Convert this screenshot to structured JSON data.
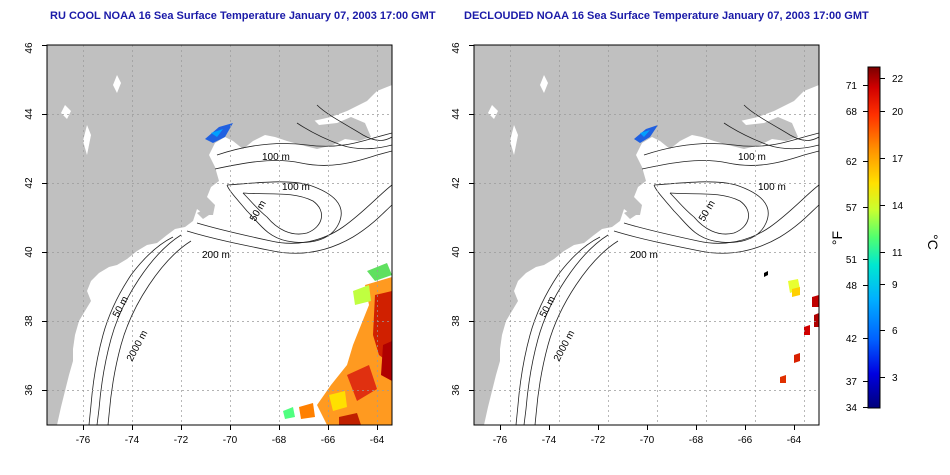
{
  "panels": [
    {
      "id": "left",
      "title": "RU COOL NOAA 16 Sea Surface Temperature January 07, 2003 17:00 GMT"
    },
    {
      "id": "right",
      "title": "DECLOUDED NOAA 16 Sea Surface Temperature January 07, 2003 17:00 GMT"
    }
  ],
  "map": {
    "lon_ticks": [
      "-76",
      "-74",
      "-72",
      "-70",
      "-68",
      "-66",
      "-64"
    ],
    "lat_ticks": [
      "36",
      "38",
      "40",
      "42",
      "44",
      "46"
    ],
    "lon_range": [
      -77.0,
      -63.0
    ],
    "lat_range": [
      35.0,
      46.0
    ],
    "land_color": "#c0c0c0",
    "ocean_color": "#ffffff",
    "graticule": "dotted"
  },
  "contour_labels": [
    "100 m",
    "100 m",
    "50 m",
    "200 m",
    "50 m",
    "2000 m"
  ],
  "colorbar": {
    "f_label": "°F",
    "c_label": "°C",
    "f_ticks": [
      "71",
      "68",
      "62",
      "57",
      "51",
      "48",
      "42",
      "37",
      "34"
    ],
    "c_ticks": [
      "22",
      "20",
      "17",
      "14",
      "11",
      "9",
      "6",
      "3"
    ],
    "colors": [
      "#000080",
      "#0000d0",
      "#0050ff",
      "#00a0ff",
      "#00e0e0",
      "#40ff80",
      "#c0ff40",
      "#ffff00",
      "#ffa000",
      "#ff4000",
      "#d00000",
      "#800000"
    ]
  }
}
